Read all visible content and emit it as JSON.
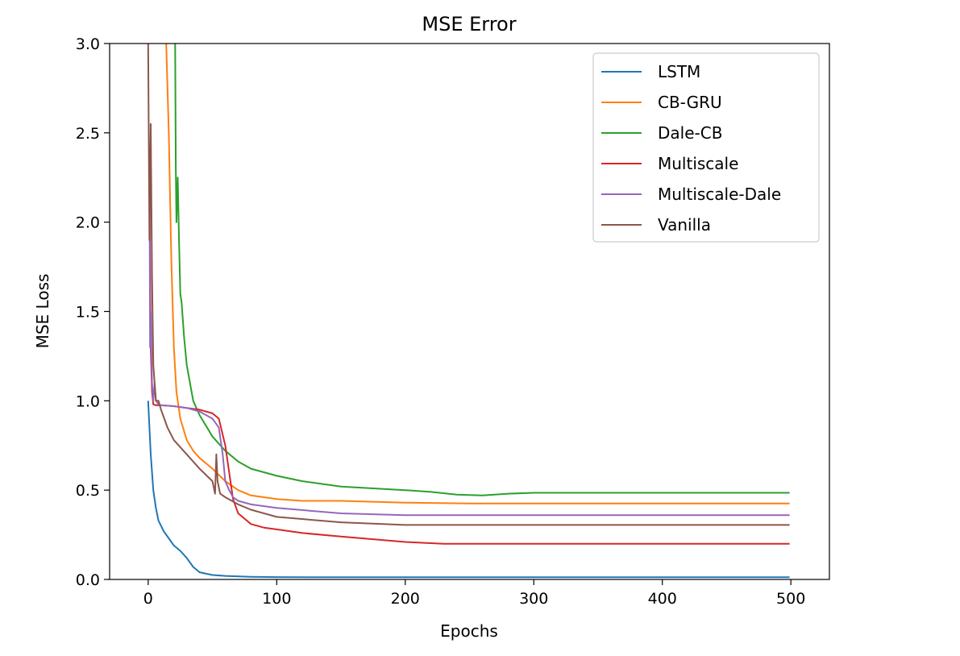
{
  "chart_data": {
    "type": "line",
    "title": "MSE Error",
    "xlabel": "Epochs",
    "ylabel": "MSE Loss",
    "xlim": [
      -30,
      530
    ],
    "ylim": [
      0,
      3
    ],
    "xticks": [
      0,
      100,
      200,
      300,
      400,
      500
    ],
    "yticks": [
      0.0,
      0.5,
      1.0,
      1.5,
      2.0,
      2.5,
      3.0
    ],
    "xtick_labels": [
      "0",
      "100",
      "200",
      "300",
      "400",
      "500"
    ],
    "ytick_labels": [
      "0.0",
      "0.5",
      "1.0",
      "1.5",
      "2.0",
      "2.5",
      "3.0"
    ],
    "grid": false,
    "legend_position": "top-right",
    "series": [
      {
        "name": "LSTM",
        "color": "#1f77b4",
        "x": [
          0,
          2,
          4,
          6,
          8,
          12,
          16,
          20,
          25,
          30,
          35,
          40,
          50,
          60,
          80,
          100,
          150,
          200,
          300,
          400,
          499
        ],
        "y": [
          1.0,
          0.7,
          0.5,
          0.4,
          0.33,
          0.27,
          0.23,
          0.19,
          0.16,
          0.12,
          0.07,
          0.04,
          0.025,
          0.02,
          0.015,
          0.013,
          0.012,
          0.012,
          0.012,
          0.012,
          0.012
        ]
      },
      {
        "name": "CB-GRU",
        "color": "#ff7f0e",
        "x": [
          14,
          16,
          18,
          20,
          22,
          25,
          30,
          35,
          40,
          50,
          60,
          70,
          80,
          100,
          120,
          150,
          200,
          250,
          300,
          499
        ],
        "y": [
          3.0,
          2.5,
          1.8,
          1.3,
          1.05,
          0.9,
          0.78,
          0.72,
          0.68,
          0.62,
          0.55,
          0.5,
          0.47,
          0.45,
          0.44,
          0.44,
          0.43,
          0.425,
          0.425,
          0.425
        ]
      },
      {
        "name": "Dale-CB",
        "color": "#2ca02c",
        "x": [
          21,
          21.5,
          22,
          23,
          24,
          25,
          26,
          28,
          30,
          35,
          40,
          50,
          60,
          70,
          80,
          100,
          120,
          150,
          200,
          220,
          240,
          260,
          280,
          300,
          499
        ],
        "y": [
          3.0,
          2.3,
          2.0,
          2.25,
          1.9,
          1.6,
          1.55,
          1.35,
          1.2,
          1.0,
          0.92,
          0.8,
          0.72,
          0.66,
          0.62,
          0.58,
          0.55,
          0.52,
          0.5,
          0.49,
          0.475,
          0.47,
          0.48,
          0.485,
          0.485
        ]
      },
      {
        "name": "Multiscale",
        "color": "#d62728",
        "x": [
          1,
          2,
          3,
          4,
          6,
          8,
          10,
          20,
          30,
          40,
          50,
          55,
          60,
          63,
          66,
          70,
          80,
          90,
          100,
          120,
          150,
          200,
          230,
          300,
          499
        ],
        "y": [
          2.2,
          1.3,
          1.05,
          0.98,
          0.975,
          0.975,
          0.975,
          0.97,
          0.96,
          0.95,
          0.93,
          0.9,
          0.75,
          0.6,
          0.45,
          0.37,
          0.31,
          0.29,
          0.28,
          0.26,
          0.24,
          0.21,
          0.2,
          0.2,
          0.2
        ]
      },
      {
        "name": "Multiscale-Dale",
        "color": "#9467bd",
        "x": [
          1,
          1.5,
          2,
          3,
          4,
          5,
          6,
          8,
          10,
          20,
          30,
          40,
          50,
          55,
          58,
          60,
          63,
          66,
          70,
          80,
          100,
          150,
          200,
          499
        ],
        "y": [
          2.35,
          1.3,
          1.5,
          1.1,
          1.0,
          1.1,
          1.0,
          0.98,
          0.975,
          0.97,
          0.96,
          0.94,
          0.9,
          0.85,
          0.7,
          0.55,
          0.5,
          0.46,
          0.44,
          0.42,
          0.4,
          0.37,
          0.36,
          0.36
        ]
      },
      {
        "name": "Vanilla",
        "color": "#8c564b",
        "x": [
          0,
          1,
          2,
          3,
          4,
          6,
          8,
          10,
          15,
          20,
          30,
          40,
          50,
          52,
          53,
          54,
          56,
          60,
          70,
          80,
          100,
          150,
          200,
          499
        ],
        "y": [
          3.0,
          1.9,
          2.55,
          1.7,
          1.2,
          1.0,
          1.0,
          0.95,
          0.85,
          0.78,
          0.7,
          0.62,
          0.55,
          0.48,
          0.7,
          0.55,
          0.48,
          0.46,
          0.42,
          0.39,
          0.35,
          0.32,
          0.305,
          0.305
        ]
      }
    ]
  }
}
